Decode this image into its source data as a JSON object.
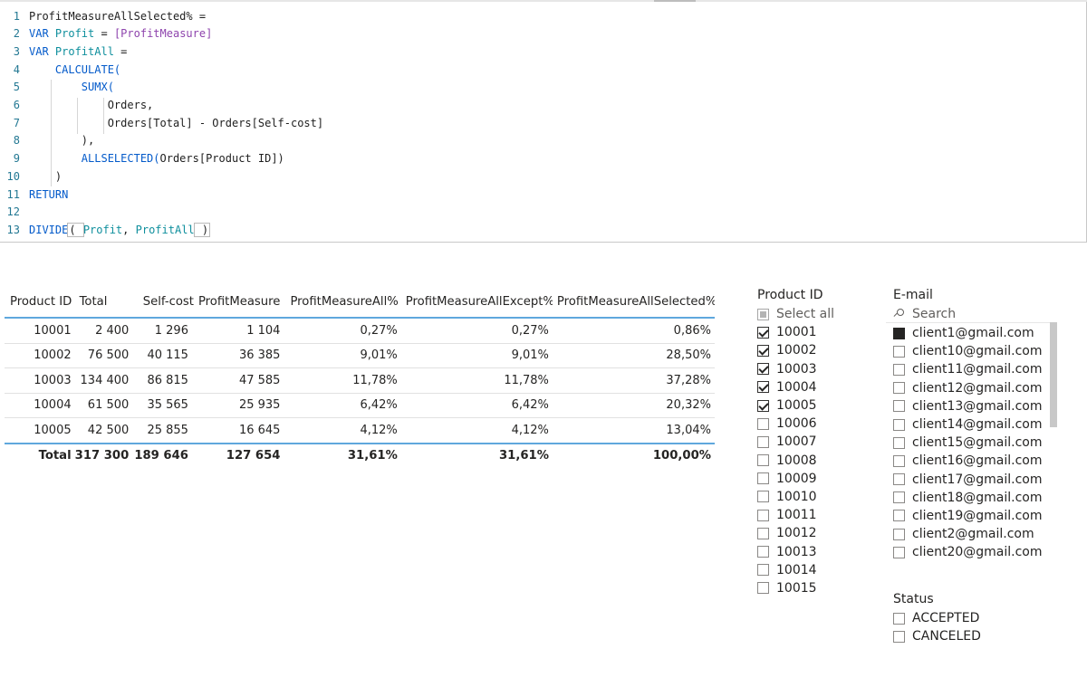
{
  "editor": {
    "lines": [
      {
        "n": "1",
        "tokens": [
          {
            "t": "ProfitMeasureAllSelected% =",
            "c": "tx"
          }
        ]
      },
      {
        "n": "2",
        "tokens": [
          {
            "t": "VAR ",
            "c": "kw"
          },
          {
            "t": "Profit",
            "c": "vr"
          },
          {
            "t": " = ",
            "c": "tx"
          },
          {
            "t": "[ProfitMeasure]",
            "c": "ms"
          }
        ]
      },
      {
        "n": "3",
        "tokens": [
          {
            "t": "VAR ",
            "c": "kw"
          },
          {
            "t": "ProfitAll",
            "c": "vr"
          },
          {
            "t": " =",
            "c": "tx"
          }
        ]
      },
      {
        "n": "4",
        "tokens": [
          {
            "t": "    CALCULATE(",
            "c": "fn"
          }
        ]
      },
      {
        "n": "5",
        "tokens": [
          {
            "t": "        SUMX(",
            "c": "fn"
          }
        ]
      },
      {
        "n": "6",
        "tokens": [
          {
            "t": "            Orders,",
            "c": "tx"
          }
        ]
      },
      {
        "n": "7",
        "tokens": [
          {
            "t": "            Orders[Total] - Orders[Self-cost]",
            "c": "tx"
          }
        ]
      },
      {
        "n": "8",
        "tokens": [
          {
            "t": "        ),",
            "c": "tx"
          }
        ]
      },
      {
        "n": "9",
        "tokens": [
          {
            "t": "        ALLSELECTED(",
            "c": "fn"
          },
          {
            "t": "Orders[Product ID])",
            "c": "tx"
          }
        ]
      },
      {
        "n": "10",
        "tokens": [
          {
            "t": "    )",
            "c": "tx"
          }
        ]
      },
      {
        "n": "11",
        "tokens": [
          {
            "t": "RETURN",
            "c": "kw"
          }
        ]
      },
      {
        "n": "12",
        "tokens": []
      },
      {
        "n": "13",
        "tokens": [
          {
            "t": "DIVIDE",
            "c": "fn"
          },
          {
            "t": "( ",
            "c": "brk-open"
          },
          {
            "t": "Profit",
            "c": "vr"
          },
          {
            "t": ", ",
            "c": "tx"
          },
          {
            "t": "ProfitAll",
            "c": "vr"
          },
          {
            "t": " )",
            "c": "brk-close"
          }
        ]
      }
    ]
  },
  "table": {
    "headers": [
      "Product ID",
      "Total",
      "Self-cost",
      "ProfitMeasure",
      "ProfitMeasureAll%",
      "ProfitMeasureAllExcept%",
      "ProfitMeasureAllSelected%"
    ],
    "rows": [
      [
        "10001",
        "2 400",
        "1 296",
        "1 104",
        "0,27%",
        "0,27%",
        "0,86%"
      ],
      [
        "10002",
        "76 500",
        "40 115",
        "36 385",
        "9,01%",
        "9,01%",
        "28,50%"
      ],
      [
        "10003",
        "134 400",
        "86 815",
        "47 585",
        "11,78%",
        "11,78%",
        "37,28%"
      ],
      [
        "10004",
        "61 500",
        "35 565",
        "25 935",
        "6,42%",
        "6,42%",
        "20,32%"
      ],
      [
        "10005",
        "42 500",
        "25 855",
        "16 645",
        "4,12%",
        "4,12%",
        "13,04%"
      ]
    ],
    "total": [
      "Total",
      "317 300",
      "189 646",
      "127 654",
      "31,61%",
      "31,61%",
      "100,00%"
    ]
  },
  "product_slicer": {
    "title": "Product ID",
    "select_all": "Select all",
    "items": [
      {
        "label": "10001",
        "checked": true
      },
      {
        "label": "10002",
        "checked": true
      },
      {
        "label": "10003",
        "checked": true
      },
      {
        "label": "10004",
        "checked": true
      },
      {
        "label": "10005",
        "checked": true
      },
      {
        "label": "10006",
        "checked": false
      },
      {
        "label": "10007",
        "checked": false
      },
      {
        "label": "10008",
        "checked": false
      },
      {
        "label": "10009",
        "checked": false
      },
      {
        "label": "10010",
        "checked": false
      },
      {
        "label": "10011",
        "checked": false
      },
      {
        "label": "10012",
        "checked": false
      },
      {
        "label": "10013",
        "checked": false
      },
      {
        "label": "10014",
        "checked": false
      },
      {
        "label": "10015",
        "checked": false
      }
    ]
  },
  "email_slicer": {
    "title": "E-mail",
    "search_placeholder": "Search",
    "items": [
      {
        "label": "client1@gmail.com",
        "state": "filled"
      },
      {
        "label": "client10@gmail.com",
        "state": "empty"
      },
      {
        "label": "client11@gmail.com",
        "state": "empty"
      },
      {
        "label": "client12@gmail.com",
        "state": "empty"
      },
      {
        "label": "client13@gmail.com",
        "state": "empty"
      },
      {
        "label": "client14@gmail.com",
        "state": "empty"
      },
      {
        "label": "client15@gmail.com",
        "state": "empty"
      },
      {
        "label": "client16@gmail.com",
        "state": "empty"
      },
      {
        "label": "client17@gmail.com",
        "state": "empty"
      },
      {
        "label": "client18@gmail.com",
        "state": "empty"
      },
      {
        "label": "client19@gmail.com",
        "state": "empty"
      },
      {
        "label": "client2@gmail.com",
        "state": "empty"
      },
      {
        "label": "client20@gmail.com",
        "state": "empty"
      }
    ]
  },
  "status_slicer": {
    "title": "Status",
    "items": [
      {
        "label": "ACCEPTED",
        "checked": false
      },
      {
        "label": "CANCELED",
        "checked": false
      }
    ]
  },
  "colors": {
    "accent_line": "#5fa8dd",
    "keyword": "#035aca",
    "variable": "#0f8f9d",
    "measure": "#8e44ad",
    "line_number": "#237893"
  }
}
